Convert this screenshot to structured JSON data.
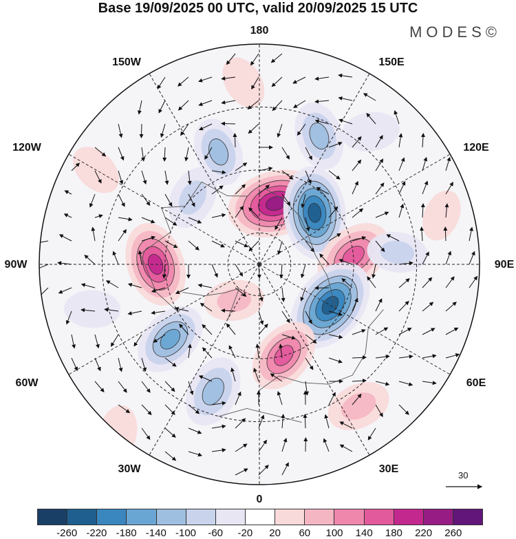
{
  "title": "Base 19/09/2025 00 UTC, valid 20/09/2025 15 UTC",
  "brand": "MODES©",
  "longitude_labels": {
    "n180": "180",
    "w150": "150W",
    "e150": "150E",
    "w120": "120W",
    "e120": "120E",
    "w90": "90W",
    "e90": "90E",
    "w60": "60W",
    "e60": "60E",
    "w30": "30W",
    "e30": "30E",
    "s0": "0"
  },
  "vector_scale": {
    "label": "30"
  },
  "colorbar": {
    "colors": [
      "#1a3f66",
      "#1f5f8f",
      "#3a86bf",
      "#6aa6d3",
      "#9fbfe0",
      "#c9d3ec",
      "#e8e6f3",
      "#ffffff",
      "#f9dada",
      "#f5b6c4",
      "#ef87ad",
      "#e35a9c",
      "#c3288e",
      "#971c84",
      "#62167a"
    ],
    "ticks": [
      "-260",
      "-220",
      "-180",
      "-140",
      "-100",
      "-60",
      "-20",
      "20",
      "60",
      "100",
      "140",
      "180",
      "220",
      "260"
    ]
  },
  "anomaly_features": [
    {
      "lon_deg": 165,
      "colat_deg": 20,
      "intensity": 240
    },
    {
      "lon_deg": 133,
      "colat_deg": 24,
      "intensity": -220
    },
    {
      "lon_deg": 95,
      "colat_deg": 30,
      "intensity": 160
    },
    {
      "lon_deg": 60,
      "colat_deg": 26,
      "intensity": -240
    },
    {
      "lon_deg": 95,
      "colat_deg": 44,
      "intensity": -60
    },
    {
      "lon_deg": 15,
      "colat_deg": 30,
      "intensity": 140
    },
    {
      "lon_deg": 340,
      "colat_deg": 43,
      "intensity": -120
    },
    {
      "lon_deg": 270,
      "colat_deg": 33,
      "intensity": 180
    },
    {
      "lon_deg": 310,
      "colat_deg": 37,
      "intensity": -140
    },
    {
      "lon_deg": 325,
      "colat_deg": 14,
      "intensity": 60
    },
    {
      "lon_deg": 200,
      "colat_deg": 38,
      "intensity": -100
    },
    {
      "lon_deg": 225,
      "colat_deg": 30,
      "intensity": -80
    },
    {
      "lon_deg": 155,
      "colat_deg": 45,
      "intensity": -100
    },
    {
      "lon_deg": 35,
      "colat_deg": 55,
      "intensity": 80
    },
    {
      "lon_deg": 320,
      "colat_deg": 70,
      "intensity": 40
    },
    {
      "lon_deg": 240,
      "colat_deg": 60,
      "intensity": 30
    },
    {
      "lon_deg": 105,
      "colat_deg": 60,
      "intensity": 20
    },
    {
      "lon_deg": 140,
      "colat_deg": 55,
      "intensity": -50
    },
    {
      "lon_deg": 185,
      "colat_deg": 58,
      "intensity": 30
    },
    {
      "lon_deg": 285,
      "colat_deg": 55,
      "intensity": -40
    }
  ]
}
